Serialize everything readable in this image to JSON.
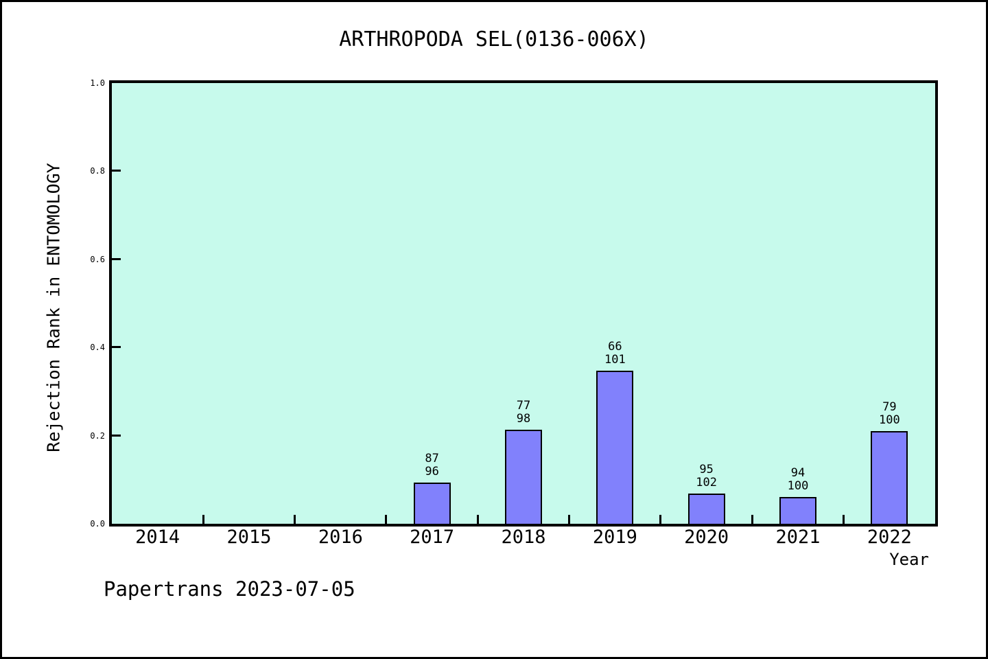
{
  "footer": "Papertrans 2023-07-05",
  "chart_data": {
    "type": "bar",
    "title": "ARTHROPODA SEL(0136-006X)",
    "xlabel": "Year",
    "ylabel": "Rejection Rank in ENTOMOLOGY",
    "ylim": [
      0.0,
      1.0
    ],
    "ytick_labels": [
      "0.0",
      "0.2",
      "0.4",
      "0.6",
      "0.8",
      "1.0"
    ],
    "grid": false,
    "legend": null,
    "categories": [
      "2014",
      "2015",
      "2016",
      "2017",
      "2018",
      "2019",
      "2020",
      "2021",
      "2022"
    ],
    "bars": [
      {
        "category": "2014",
        "value": null,
        "annotation": null
      },
      {
        "category": "2015",
        "value": null,
        "annotation": null
      },
      {
        "category": "2016",
        "value": null,
        "annotation": null
      },
      {
        "category": "2017",
        "value": 0.094,
        "annotation": {
          "rank": "87",
          "total": "96"
        }
      },
      {
        "category": "2018",
        "value": 0.214,
        "annotation": {
          "rank": "77",
          "total": "98"
        }
      },
      {
        "category": "2019",
        "value": 0.347,
        "annotation": {
          "rank": "66",
          "total": "101"
        }
      },
      {
        "category": "2020",
        "value": 0.069,
        "annotation": {
          "rank": "95",
          "total": "102"
        }
      },
      {
        "category": "2021",
        "value": 0.06,
        "annotation": {
          "rank": "94",
          "total": "100"
        }
      },
      {
        "category": "2022",
        "value": 0.21,
        "annotation": {
          "rank": "79",
          "total": "100"
        }
      }
    ],
    "colors": {
      "plot_background": "#C7FAEC",
      "bar_fill": "#8181FC",
      "bar_border": "#000000",
      "frame": "#000000",
      "text": "#000000"
    }
  }
}
